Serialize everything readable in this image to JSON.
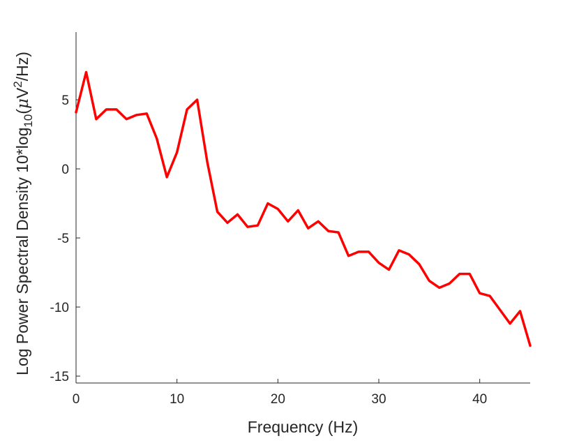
{
  "chart_data": {
    "type": "line",
    "title": "",
    "xlabel": "Frequency (Hz)",
    "ylabel": {
      "main": "Log Power Spectral Density 10*log",
      "sub": "10",
      "paren_open": "(",
      "mu": "μ",
      "unit": "V",
      "sup": "2",
      "tail": "/Hz)"
    },
    "xlim": [
      0,
      45
    ],
    "ylim": [
      -15.5,
      9.9
    ],
    "xticks": [
      0,
      10,
      20,
      30,
      40
    ],
    "xtick_labels": [
      "0",
      "10",
      "20",
      "30",
      "40"
    ],
    "yticks": [
      5,
      0,
      -5,
      -10,
      -15
    ],
    "ytick_labels": [
      "5",
      "0",
      "-5",
      "-10",
      "-15"
    ],
    "grid": false,
    "legend": "none",
    "series": [
      {
        "color": "#ff0000",
        "x": [
          0,
          1,
          2,
          3,
          4,
          5,
          6,
          7,
          8,
          9,
          10,
          11,
          12,
          13,
          14,
          15,
          16,
          17,
          18,
          19,
          20,
          21,
          22,
          23,
          24,
          25,
          26,
          27,
          28,
          29,
          30,
          31,
          32,
          33,
          34,
          35,
          36,
          37,
          38,
          39,
          40,
          41,
          42,
          43,
          44,
          45
        ],
        "y": [
          4.1,
          7.0,
          3.6,
          4.3,
          4.3,
          3.6,
          3.9,
          4.0,
          2.2,
          -0.6,
          1.2,
          4.3,
          5.0,
          0.5,
          -3.1,
          -3.9,
          -3.3,
          -4.2,
          -4.1,
          -2.5,
          -2.9,
          -3.8,
          -3.0,
          -4.3,
          -3.8,
          -4.5,
          -4.6,
          -6.3,
          -6.0,
          -6.0,
          -6.8,
          -7.3,
          -5.9,
          -6.2,
          -6.9,
          -8.1,
          -8.6,
          -8.3,
          -7.6,
          -7.6,
          -9.0,
          -9.2,
          -10.2,
          -11.2,
          -10.3,
          -12.8
        ]
      }
    ]
  }
}
